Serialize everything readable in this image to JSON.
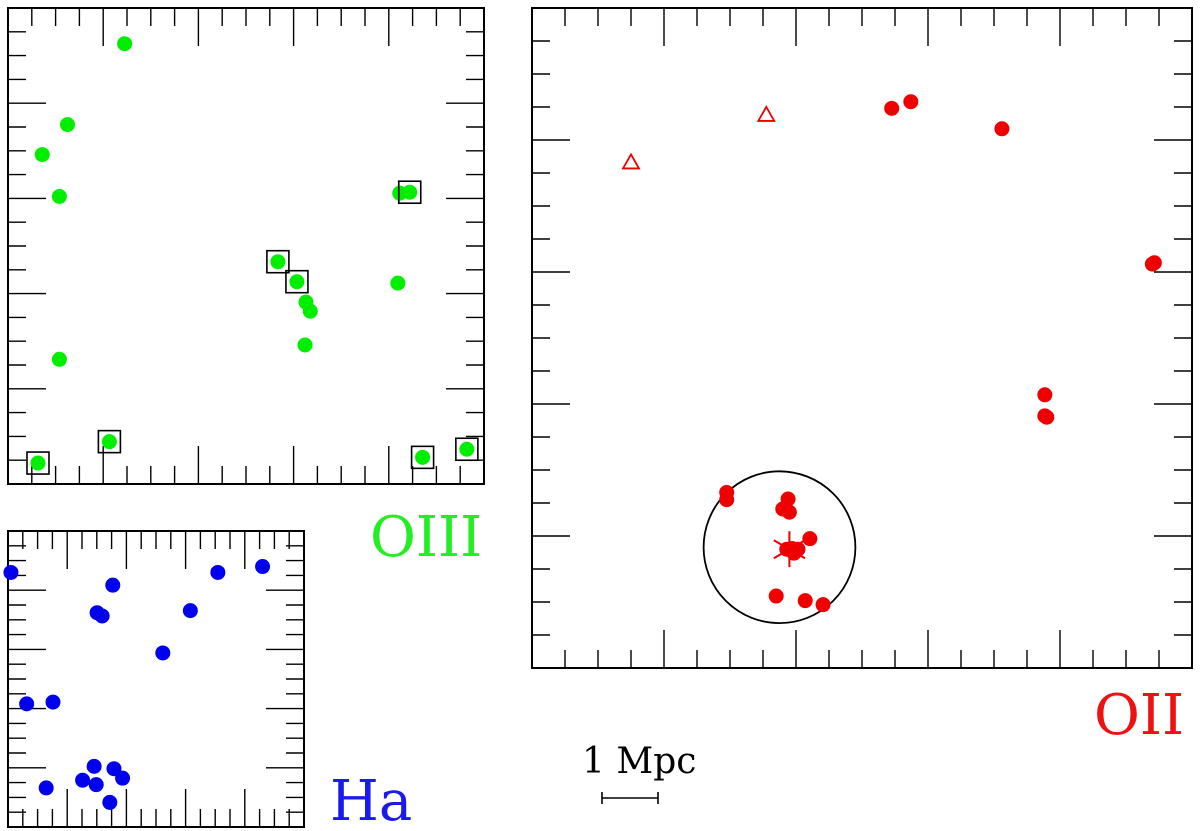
{
  "chart_data": [
    {
      "type": "scatter",
      "name_label": "OIII",
      "label_color": "#22ee22",
      "xlim": [
        0,
        100
      ],
      "ylim": [
        0,
        100
      ],
      "grid": false,
      "marker": "filled-circle",
      "color": "#00ee00",
      "points": [
        {
          "x": 24.5,
          "y": 92.5
        },
        {
          "x": 12.5,
          "y": 75.5
        },
        {
          "x": 7.2,
          "y": 69.2
        },
        {
          "x": 10.8,
          "y": 60.4
        },
        {
          "x": 82.3,
          "y": 61.1
        },
        {
          "x": 84.4,
          "y": 61.3,
          "boxed": true
        },
        {
          "x": 56.7,
          "y": 46.7,
          "boxed": true
        },
        {
          "x": 60.7,
          "y": 42.5,
          "boxed": true
        },
        {
          "x": 62.6,
          "y": 38.2
        },
        {
          "x": 63.5,
          "y": 36.3
        },
        {
          "x": 81.9,
          "y": 42.2
        },
        {
          "x": 62.4,
          "y": 29.2
        },
        {
          "x": 10.8,
          "y": 26.2
        },
        {
          "x": 21.3,
          "y": 8.9,
          "boxed": true
        },
        {
          "x": 6.3,
          "y": 4.4,
          "boxed": true
        },
        {
          "x": 87.1,
          "y": 5.6,
          "boxed": true
        },
        {
          "x": 96.4,
          "y": 7.3,
          "boxed": true
        }
      ]
    },
    {
      "type": "scatter",
      "name_label": "OII",
      "label_color": "#ee1111",
      "xlim": [
        0,
        100
      ],
      "ylim": [
        0,
        100
      ],
      "grid": false,
      "color": "#ee0000",
      "points": [
        {
          "x": 54.5,
          "y": 84.8
        },
        {
          "x": 57.4,
          "y": 85.8
        },
        {
          "x": 71.2,
          "y": 81.7
        },
        {
          "x": 94.0,
          "y": 61.2
        },
        {
          "x": 94.3,
          "y": 61.4
        },
        {
          "x": 77.7,
          "y": 41.4
        },
        {
          "x": 77.7,
          "y": 38.2
        },
        {
          "x": 78.0,
          "y": 38.0
        },
        {
          "x": 29.5,
          "y": 26.6
        },
        {
          "x": 29.5,
          "y": 25.5
        },
        {
          "x": 38.0,
          "y": 24.1
        },
        {
          "x": 38.8,
          "y": 25.6
        },
        {
          "x": 39.0,
          "y": 23.6
        },
        {
          "x": 42.1,
          "y": 19.6
        },
        {
          "x": 38.6,
          "y": 18.0
        },
        {
          "x": 39.4,
          "y": 18.1
        },
        {
          "x": 39.7,
          "y": 17.4
        },
        {
          "x": 40.3,
          "y": 18.0
        },
        {
          "x": 37.0,
          "y": 10.9
        },
        {
          "x": 41.4,
          "y": 10.2
        },
        {
          "x": 44.1,
          "y": 9.6
        }
      ],
      "triangles": [
        {
          "x": 15.0,
          "y": 76.6
        },
        {
          "x": 35.5,
          "y": 83.8
        }
      ],
      "star": {
        "x": 39.0,
        "y": 18.0
      },
      "circle": {
        "x": 37.5,
        "y": 18.3,
        "r": 11.5
      }
    },
    {
      "type": "scatter",
      "name_label": "Ha",
      "label_color": "#1a1aee",
      "xlim": [
        0,
        100
      ],
      "ylim": [
        0,
        100
      ],
      "grid": false,
      "color": "#0000ee",
      "points": [
        {
          "x": 1.0,
          "y": 86.0
        },
        {
          "x": 35.4,
          "y": 81.7
        },
        {
          "x": 70.9,
          "y": 86.0
        },
        {
          "x": 86.0,
          "y": 88.0
        },
        {
          "x": 30.1,
          "y": 72.4
        },
        {
          "x": 31.8,
          "y": 71.3
        },
        {
          "x": 61.6,
          "y": 73.1
        },
        {
          "x": 52.3,
          "y": 58.8
        },
        {
          "x": 6.3,
          "y": 41.6
        },
        {
          "x": 15.2,
          "y": 42.2
        },
        {
          "x": 29.1,
          "y": 20.5
        },
        {
          "x": 35.8,
          "y": 19.7
        },
        {
          "x": 25.2,
          "y": 15.8
        },
        {
          "x": 29.8,
          "y": 14.3
        },
        {
          "x": 38.7,
          "y": 16.5
        },
        {
          "x": 12.9,
          "y": 13.2
        },
        {
          "x": 34.4,
          "y": 8.3
        }
      ]
    }
  ],
  "scale_bar": {
    "label": "1 Mpc"
  }
}
